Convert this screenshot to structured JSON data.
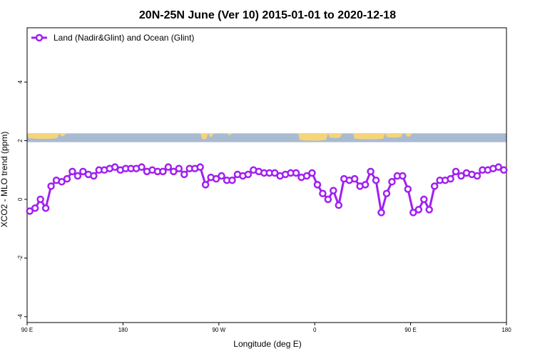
{
  "chart_data": {
    "type": "line",
    "title": "20N-25N June (Ver 10)   2015-01-01 to 2020-12-18",
    "xlabel": "Longitude (deg E)",
    "ylabel": "XCO2 - MLO trend (ppm)",
    "xlim": [
      90,
      540
    ],
    "ylim": [
      -4.2,
      5.85
    ],
    "x_ticks": [
      {
        "value": 90,
        "label": "90 E"
      },
      {
        "value": 180,
        "label": "180"
      },
      {
        "value": 270,
        "label": "90 W"
      },
      {
        "value": 360,
        "label": "0"
      },
      {
        "value": 450,
        "label": "90 E"
      },
      {
        "value": 540,
        "label": "180"
      }
    ],
    "y_ticks": [
      {
        "value": -4,
        "label": "-4"
      },
      {
        "value": -2,
        "label": "-2"
      },
      {
        "value": 0,
        "label": "0"
      },
      {
        "value": 2,
        "label": "2"
      },
      {
        "value": 4,
        "label": "4"
      }
    ],
    "legend": {
      "position": "top-left"
    },
    "map_strip": {
      "y_range": [
        1.95,
        2.25
      ],
      "ocean_color": "#a9bbd1",
      "land_color": "#f5d57a"
    },
    "series": [
      {
        "name": "Land (Nadir&Glint) and Ocean (Glint)",
        "color": "#a020f0",
        "x": [
          92.5,
          97.5,
          102.5,
          107.5,
          112.5,
          117.5,
          122.5,
          127.5,
          132.5,
          137.5,
          142.5,
          147.5,
          152.5,
          157.5,
          162.5,
          167.5,
          172.5,
          177.5,
          182.5,
          187.5,
          192.5,
          197.5,
          202.5,
          207.5,
          212.5,
          217.5,
          222.5,
          227.5,
          232.5,
          237.5,
          242.5,
          247.5,
          252.5,
          257.5,
          262.5,
          267.5,
          272.5,
          277.5,
          282.5,
          287.5,
          292.5,
          297.5,
          302.5,
          307.5,
          312.5,
          317.5,
          322.5,
          327.5,
          332.5,
          337.5,
          342.5,
          347.5,
          352.5,
          357.5,
          362.5,
          367.5,
          372.5,
          377.5,
          382.5,
          387.5,
          392.5,
          397.5,
          402.5,
          407.5,
          412.5,
          417.5,
          422.5,
          427.5,
          432.5,
          437.5,
          442.5,
          447.5,
          452.5,
          457.5,
          462.5,
          467.5,
          472.5,
          477.5,
          482.5,
          487.5,
          492.5,
          497.5,
          502.5,
          507.5,
          512.5,
          517.5,
          522.5,
          527.5,
          532.5,
          537.5
        ],
        "y": [
          -0.4,
          -0.3,
          0.0,
          -0.3,
          0.45,
          0.65,
          0.6,
          0.7,
          0.95,
          0.8,
          0.95,
          0.85,
          0.8,
          1.0,
          1.0,
          1.05,
          1.1,
          1.0,
          1.05,
          1.05,
          1.05,
          1.1,
          0.95,
          1.0,
          0.95,
          0.95,
          1.1,
          0.95,
          1.05,
          0.85,
          1.05,
          1.05,
          1.1,
          0.5,
          0.75,
          0.7,
          0.8,
          0.65,
          0.65,
          0.85,
          0.8,
          0.85,
          1.0,
          0.95,
          0.9,
          0.9,
          0.9,
          0.8,
          0.85,
          0.9,
          0.9,
          0.75,
          0.8,
          0.9,
          0.5,
          0.2,
          0.0,
          0.3,
          -0.2,
          0.7,
          0.65,
          0.7,
          0.45,
          0.5,
          0.95,
          0.65,
          -0.45,
          0.2,
          0.6,
          0.8,
          0.8,
          0.35,
          -0.45,
          -0.35,
          0.0,
          -0.35,
          0.45,
          0.65,
          0.65,
          0.7,
          0.95,
          0.8,
          0.9,
          0.85,
          0.8,
          1.0,
          1.0,
          1.05,
          1.1,
          1.0
        ]
      }
    ]
  }
}
